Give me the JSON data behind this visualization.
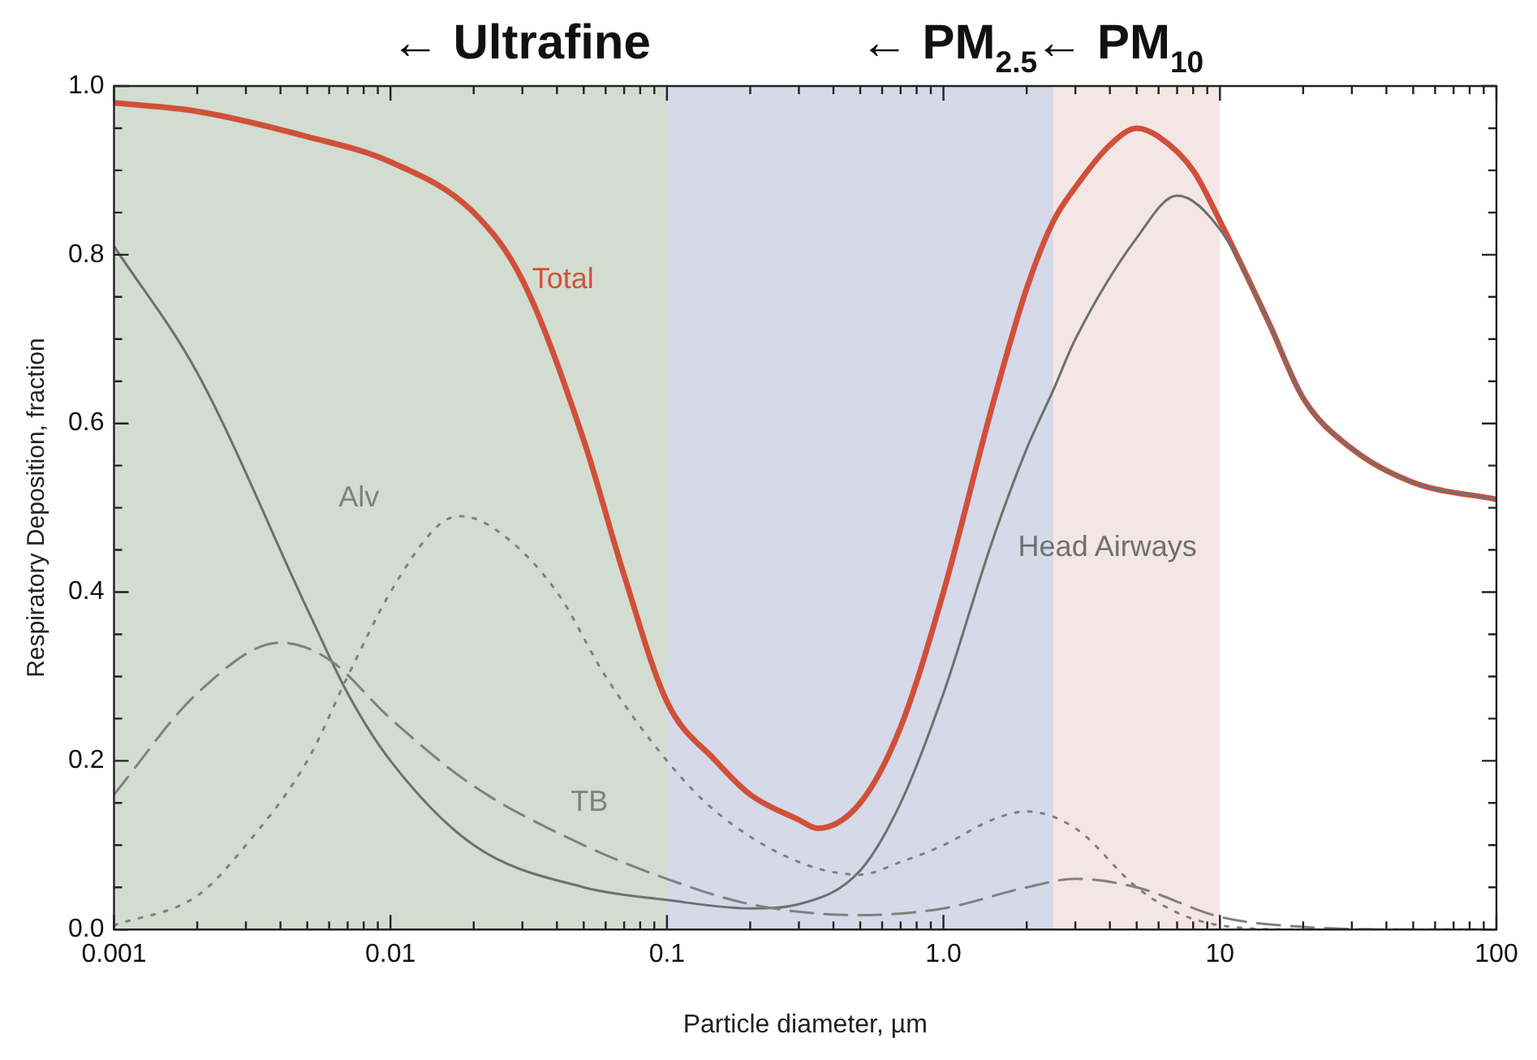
{
  "chart_data": {
    "type": "line",
    "xlabel": "Particle diameter, µm",
    "ylabel": "Respiratory Deposition, fraction",
    "log": "x",
    "grid": false,
    "legend": false,
    "marker": "none",
    "xlim": [
      0.001,
      100
    ],
    "ylim": [
      0,
      1
    ],
    "xticks": [
      {
        "value": 0.001,
        "label": "0.001"
      },
      {
        "value": 0.002,
        "label": null
      },
      {
        "value": 0.003,
        "label": null
      },
      {
        "value": 0.004,
        "label": null
      },
      {
        "value": 0.005,
        "label": null
      },
      {
        "value": 0.006,
        "label": null
      },
      {
        "value": 0.007,
        "label": null
      },
      {
        "value": 0.008,
        "label": null
      },
      {
        "value": 0.009,
        "label": null
      },
      {
        "value": 0.01,
        "label": "0.01"
      },
      {
        "value": 0.02,
        "label": null
      },
      {
        "value": 0.03,
        "label": null
      },
      {
        "value": 0.04,
        "label": null
      },
      {
        "value": 0.05,
        "label": null
      },
      {
        "value": 0.06,
        "label": null
      },
      {
        "value": 0.07,
        "label": null
      },
      {
        "value": 0.08,
        "label": null
      },
      {
        "value": 0.09,
        "label": null
      },
      {
        "value": 0.1,
        "label": "0.1"
      },
      {
        "value": 0.2,
        "label": null
      },
      {
        "value": 0.3,
        "label": null
      },
      {
        "value": 0.4,
        "label": null
      },
      {
        "value": 0.5,
        "label": null
      },
      {
        "value": 0.6,
        "label": null
      },
      {
        "value": 0.7,
        "label": null
      },
      {
        "value": 0.8,
        "label": null
      },
      {
        "value": 0.9,
        "label": null
      },
      {
        "value": 1,
        "label": "1.0"
      },
      {
        "value": 2,
        "label": null
      },
      {
        "value": 3,
        "label": null
      },
      {
        "value": 4,
        "label": null
      },
      {
        "value": 5,
        "label": null
      },
      {
        "value": 6,
        "label": null
      },
      {
        "value": 7,
        "label": null
      },
      {
        "value": 8,
        "label": null
      },
      {
        "value": 9,
        "label": null
      },
      {
        "value": 10,
        "label": "10"
      },
      {
        "value": 20,
        "label": null
      },
      {
        "value": 30,
        "label": null
      },
      {
        "value": 40,
        "label": null
      },
      {
        "value": 50,
        "label": null
      },
      {
        "value": 60,
        "label": null
      },
      {
        "value": 70,
        "label": null
      },
      {
        "value": 80,
        "label": null
      },
      {
        "value": 90,
        "label": null
      },
      {
        "value": 100,
        "label": "100"
      }
    ],
    "yticks": [
      {
        "value": 0,
        "label": "0.0"
      },
      {
        "value": 0.05,
        "label": null
      },
      {
        "value": 0.1,
        "label": null
      },
      {
        "value": 0.15,
        "label": null
      },
      {
        "value": 0.2,
        "label": "0.2"
      },
      {
        "value": 0.25,
        "label": null
      },
      {
        "value": 0.3,
        "label": null
      },
      {
        "value": 0.35,
        "label": null
      },
      {
        "value": 0.4,
        "label": "0.4"
      },
      {
        "value": 0.45,
        "label": null
      },
      {
        "value": 0.5,
        "label": null
      },
      {
        "value": 0.55,
        "label": null
      },
      {
        "value": 0.6,
        "label": "0.6"
      },
      {
        "value": 0.65,
        "label": null
      },
      {
        "value": 0.7,
        "label": null
      },
      {
        "value": 0.75,
        "label": null
      },
      {
        "value": 0.8,
        "label": "0.8"
      },
      {
        "value": 0.85,
        "label": null
      },
      {
        "value": 0.9,
        "label": null
      },
      {
        "value": 0.95,
        "label": null
      },
      {
        "value": 1,
        "label": "1.0"
      }
    ],
    "bands": [
      {
        "axis": "x",
        "from": 0.001,
        "to": 0.1,
        "label": "← Ultrafine",
        "color": "#d3dcd0"
      },
      {
        "axis": "x",
        "from": 0.1,
        "to": 2.5,
        "label": "← PM$_{2.5}$",
        "color": "#d5d9e8"
      },
      {
        "axis": "x",
        "from": 2.5,
        "to": 10,
        "label": "← PM$_{10}$",
        "color": "#f5e6e6"
      }
    ],
    "series": [
      {
        "name": "Total",
        "color": "#d0503a",
        "line_style": "solid",
        "x": [
          0.001,
          0.002,
          0.005,
          0.01,
          0.02,
          0.03,
          0.05,
          0.07,
          0.1,
          0.15,
          0.2,
          0.3,
          0.35,
          0.5,
          0.7,
          1,
          1.5,
          2,
          2.5,
          3,
          4,
          5,
          6,
          8,
          10,
          15,
          20,
          30,
          50,
          100
        ],
        "values": [
          0.98,
          0.97,
          0.94,
          0.91,
          0.85,
          0.77,
          0.58,
          0.42,
          0.27,
          0.2,
          0.16,
          0.13,
          0.12,
          0.15,
          0.24,
          0.4,
          0.62,
          0.76,
          0.84,
          0.88,
          0.93,
          0.95,
          0.94,
          0.9,
          0.84,
          0.72,
          0.63,
          0.57,
          0.53,
          0.51
        ]
      },
      {
        "name": "Head Airways",
        "color": "#6e7070",
        "line_style": "solid",
        "x": [
          0.001,
          0.002,
          0.005,
          0.007,
          0.01,
          0.02,
          0.05,
          0.1,
          0.2,
          0.3,
          0.5,
          0.7,
          1,
          1.5,
          2,
          2.5,
          3,
          5,
          7,
          10,
          15,
          20,
          30,
          50,
          100
        ],
        "values": [
          0.81,
          0.66,
          0.38,
          0.28,
          0.2,
          0.1,
          0.05,
          0.035,
          0.025,
          0.03,
          0.07,
          0.15,
          0.28,
          0.46,
          0.57,
          0.64,
          0.7,
          0.82,
          0.87,
          0.83,
          0.72,
          0.63,
          0.57,
          0.53,
          0.51
        ]
      },
      {
        "name": "Alv",
        "color": "#808080",
        "line_style": "dotted",
        "x": [
          0.001,
          0.002,
          0.003,
          0.005,
          0.007,
          0.01,
          0.015,
          0.018,
          0.025,
          0.04,
          0.06,
          0.1,
          0.15,
          0.3,
          0.5,
          0.7,
          1,
          1.5,
          2,
          3,
          5,
          7,
          10,
          20,
          100
        ],
        "values": [
          0.005,
          0.04,
          0.1,
          0.2,
          0.3,
          0.4,
          0.48,
          0.49,
          0.47,
          0.4,
          0.3,
          0.2,
          0.14,
          0.08,
          0.065,
          0.08,
          0.1,
          0.13,
          0.14,
          0.12,
          0.05,
          0.02,
          0.005,
          0,
          0
        ]
      },
      {
        "name": "TB",
        "color": "#808080",
        "line_style": "dashed",
        "x": [
          0.001,
          0.002,
          0.004,
          0.006,
          0.01,
          0.02,
          0.05,
          0.1,
          0.2,
          0.5,
          1,
          2,
          3,
          5,
          10,
          20,
          50,
          100
        ],
        "values": [
          0.16,
          0.28,
          0.34,
          0.32,
          0.25,
          0.17,
          0.1,
          0.06,
          0.03,
          0.017,
          0.025,
          0.05,
          0.06,
          0.05,
          0.015,
          0.003,
          0,
          0
        ]
      }
    ]
  }
}
